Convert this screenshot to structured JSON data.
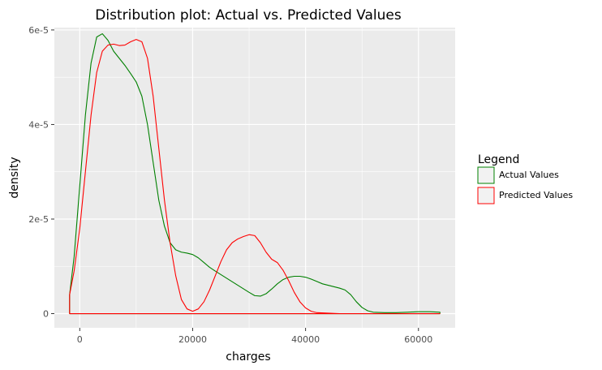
{
  "chart_data": {
    "type": "area",
    "title": "Distribution plot: Actual vs. Predicted Values",
    "xlabel": "charges",
    "ylabel": "density",
    "xlim": [
      -4500,
      66500
    ],
    "ylim": [
      -3e-06,
      6.05e-05
    ],
    "x_ticks": [
      0,
      20000,
      40000,
      60000
    ],
    "x_tick_labels": [
      "0",
      "20000",
      "40000",
      "60000"
    ],
    "y_ticks": [
      0,
      2e-05,
      4e-05,
      6e-05
    ],
    "y_tick_labels": [
      "0",
      "2e-5",
      "4e-5",
      "6e-5"
    ],
    "grid": true,
    "legend": {
      "title": "Legend",
      "position": "right"
    },
    "series": [
      {
        "name": "Actual Values",
        "color": "#008000",
        "x": [
          -1800,
          -1000,
          0,
          1000,
          2000,
          3000,
          4000,
          5000,
          6000,
          7000,
          8000,
          9000,
          10000,
          11000,
          12000,
          13000,
          14000,
          15000,
          16000,
          17000,
          18000,
          19000,
          20000,
          21000,
          22000,
          23000,
          24000,
          26000,
          28000,
          30000,
          31000,
          32000,
          33000,
          34000,
          35000,
          36000,
          37000,
          38000,
          39000,
          40000,
          41000,
          42000,
          43000,
          44000,
          45000,
          46000,
          47000,
          48000,
          49000,
          50000,
          51000,
          52000,
          54000,
          56000,
          58000,
          60000,
          62000,
          63800
        ],
        "y": [
          4e-06,
          1.2e-05,
          2.7e-05,
          4.2e-05,
          5.3e-05,
          5.85e-05,
          5.92e-05,
          5.78e-05,
          5.55e-05,
          5.4e-05,
          5.25e-05,
          5.08e-05,
          4.9e-05,
          4.6e-05,
          4e-05,
          3.2e-05,
          2.4e-05,
          1.85e-05,
          1.5e-05,
          1.35e-05,
          1.3e-05,
          1.28e-05,
          1.25e-05,
          1.18e-05,
          1.08e-05,
          9.8e-06,
          9e-06,
          7.5e-06,
          6e-06,
          4.5e-06,
          3.8e-06,
          3.7e-06,
          4.2e-06,
          5.2e-06,
          6.3e-06,
          7.2e-06,
          7.7e-06,
          7.9e-06,
          7.9e-06,
          7.7e-06,
          7.3e-06,
          6.8e-06,
          6.3e-06,
          6e-06,
          5.7e-06,
          5.4e-06,
          5e-06,
          4e-06,
          2.5e-06,
          1.3e-06,
          6e-07,
          3e-07,
          2e-07,
          2e-07,
          3e-07,
          4e-07,
          4e-07,
          3e-07
        ]
      },
      {
        "name": "Predicted Values",
        "color": "#ff0000",
        "x": [
          -1800,
          -1000,
          0,
          1000,
          2000,
          3000,
          4000,
          5000,
          6000,
          7000,
          8000,
          9000,
          10000,
          11000,
          12000,
          13000,
          14000,
          15000,
          16000,
          17000,
          18000,
          19000,
          20000,
          21000,
          22000,
          23000,
          24000,
          25000,
          26000,
          27000,
          28000,
          29000,
          30000,
          31000,
          32000,
          33000,
          34000,
          35000,
          36000,
          37000,
          38000,
          39000,
          40000,
          41000,
          42000,
          44000,
          46000,
          50000,
          55000,
          60000,
          63800
        ],
        "y": [
          4e-06,
          9e-06,
          1.8e-05,
          3e-05,
          4.2e-05,
          5.1e-05,
          5.55e-05,
          5.68e-05,
          5.7e-05,
          5.67e-05,
          5.68e-05,
          5.75e-05,
          5.8e-05,
          5.75e-05,
          5.4e-05,
          4.6e-05,
          3.5e-05,
          2.4e-05,
          1.5e-05,
          8e-06,
          3e-06,
          1e-06,
          5e-07,
          1e-06,
          2.5e-06,
          5e-06,
          8e-06,
          1.1e-05,
          1.35e-05,
          1.5e-05,
          1.58e-05,
          1.63e-05,
          1.67e-05,
          1.65e-05,
          1.5e-05,
          1.3e-05,
          1.15e-05,
          1.08e-05,
          9.2e-06,
          7e-06,
          4.5e-06,
          2.5e-06,
          1.2e-06,
          5e-07,
          2e-07,
          1e-07,
          0.0,
          0.0,
          0.0,
          0.0,
          0.0
        ]
      }
    ]
  }
}
